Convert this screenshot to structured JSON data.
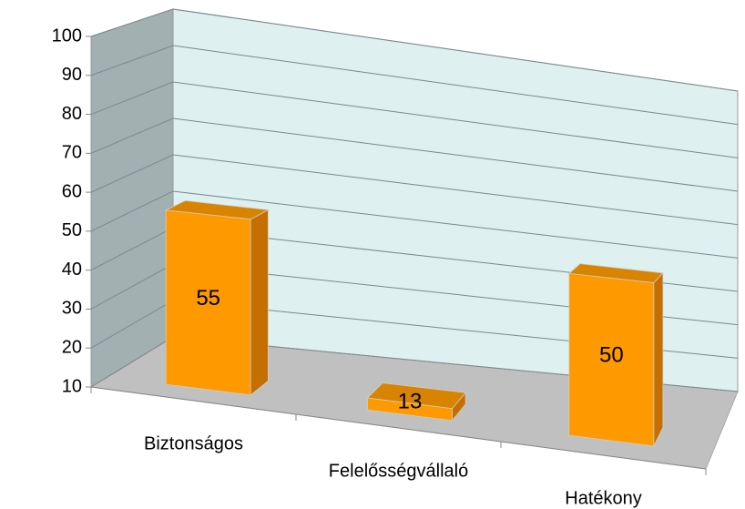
{
  "chart_data": {
    "type": "bar",
    "categories": [
      "Biztonságos",
      "Felelősségvállaló",
      "Hatékony"
    ],
    "values": [
      55,
      13,
      50
    ],
    "color": "#ff9900",
    "ylim": [
      10,
      100
    ],
    "yticks": [
      10,
      20,
      30,
      40,
      50,
      60,
      70,
      80,
      90,
      100
    ],
    "grid": true
  }
}
